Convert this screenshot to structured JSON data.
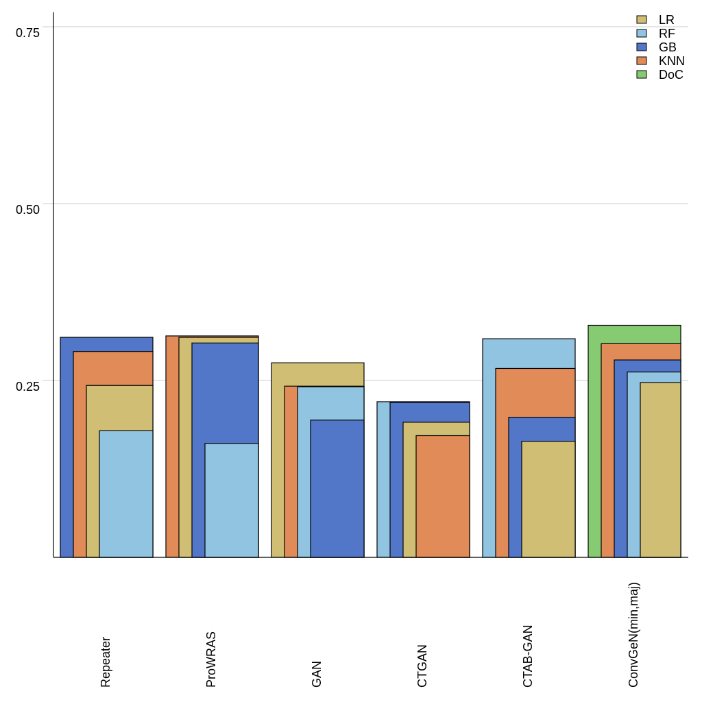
{
  "chart_data": {
    "type": "bar",
    "title": "",
    "xlabel": "",
    "ylabel": "",
    "ylim": [
      0,
      0.75
    ],
    "yticks": [
      0.25,
      0.5,
      0.75
    ],
    "ytick_labels": [
      "0.25",
      "0.50",
      "0.75"
    ],
    "grid": true,
    "legend_position": "top-right",
    "categories": [
      "Repeater",
      "ProWRAS",
      "GAN",
      "CTGAN",
      "CTAB-GAN",
      "ConvGeN(min,maj)"
    ],
    "legend": [
      {
        "name": "LR",
        "color": "#d0be75"
      },
      {
        "name": "RF",
        "color": "#91c4e0"
      },
      {
        "name": "GB",
        "color": "#5277c9"
      },
      {
        "name": "KNN",
        "color": "#e08b58"
      },
      {
        "name": "DoC",
        "color": "#86cb72"
      }
    ],
    "series": [
      {
        "name": "LR",
        "color": "#d0be75",
        "values": [
          0.243,
          0.311,
          0.275,
          0.191,
          0.164,
          0.247
        ]
      },
      {
        "name": "RF",
        "color": "#91c4e0",
        "values": [
          0.179,
          0.161,
          0.241,
          0.22,
          0.309,
          0.262
        ]
      },
      {
        "name": "GB",
        "color": "#5277c9",
        "values": [
          0.311,
          0.303,
          0.194,
          0.219,
          0.198,
          0.279
        ]
      },
      {
        "name": "KNN",
        "color": "#e08b58",
        "values": [
          0.291,
          0.313,
          0.242,
          0.172,
          0.267,
          0.302
        ]
      },
      {
        "name": "DoC",
        "color": "#86cb72",
        "values": [
          null,
          null,
          null,
          null,
          null,
          0.328
        ]
      }
    ],
    "layout_note": "bars within each category are overlaid (nested), tallest drawn at back"
  }
}
